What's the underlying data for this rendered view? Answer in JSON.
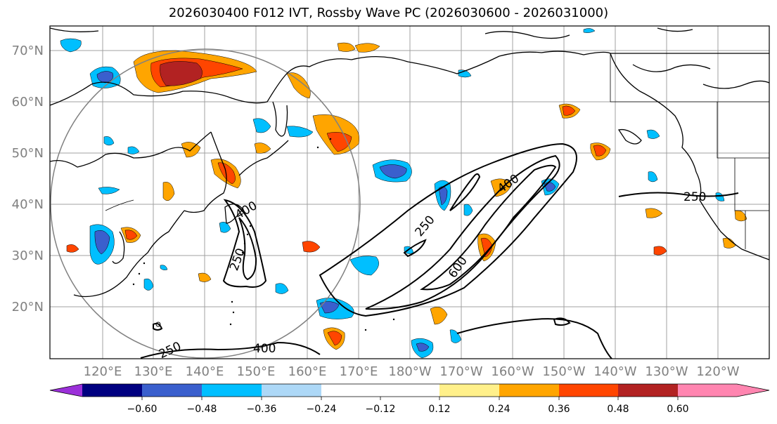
{
  "title": "2026030400 F012 IVT, Rossby Wave PC (2026030600 - 2026031000)",
  "lat_labels": [
    "70°N",
    "60°N",
    "50°N",
    "40°N",
    "30°N",
    "20°N"
  ],
  "lon_labels": [
    "120°E",
    "130°E",
    "140°E",
    "150°E",
    "160°E",
    "170°E",
    "180°W",
    "170°W",
    "160°W",
    "150°W",
    "140°W",
    "130°W",
    "120°W"
  ],
  "contour_labels": [
    "400",
    "250",
    "250",
    "400",
    "600",
    "400",
    "250",
    "250"
  ],
  "colorbar": {
    "ticks": [
      "−0.60",
      "−0.48",
      "−0.36",
      "−0.24",
      "−0.12",
      "0.12",
      "0.24",
      "0.36",
      "0.48",
      "0.60"
    ],
    "colors": [
      "#9b30d9",
      "#000080",
      "#3a5fcd",
      "#00bfff",
      "#add8f7",
      "#ffffff",
      "#fff08a",
      "#ffa500",
      "#ff4500",
      "#b22222",
      "#ff85b0"
    ]
  }
}
